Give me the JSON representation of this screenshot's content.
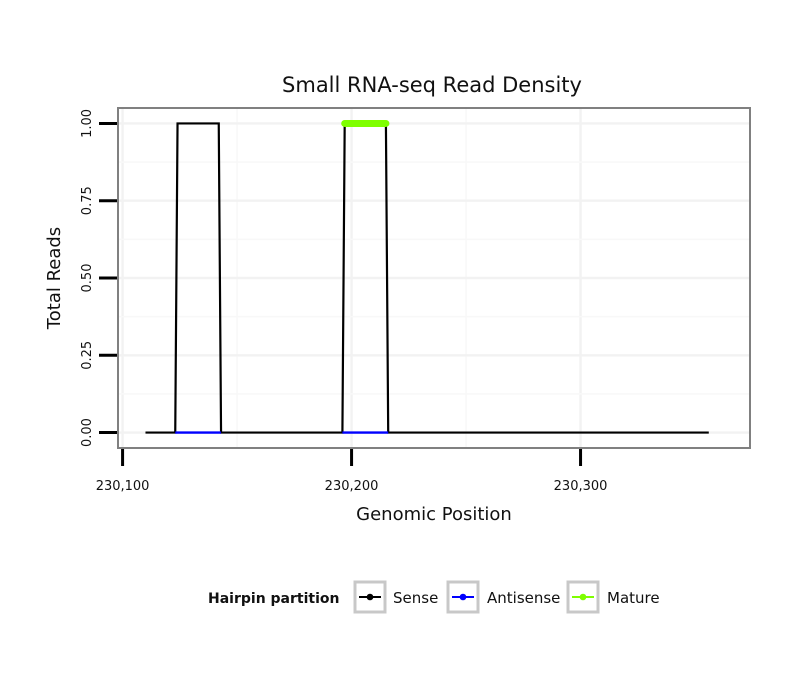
{
  "chart_data": {
    "type": "line",
    "title": "Small RNA-seq Read Density",
    "xlabel": "Genomic Position",
    "ylabel": "Total Reads",
    "xlim": [
      230098,
      230374
    ],
    "ylim": [
      -0.05,
      1.05
    ],
    "x_ticks": [
      230100,
      230200,
      230300
    ],
    "x_tick_labels": [
      "230,100",
      "230,200",
      "230,300"
    ],
    "y_ticks": [
      0,
      0.25,
      0.5,
      0.75,
      1
    ],
    "y_tick_labels": [
      "0.00",
      "0.25",
      "0.50",
      "0.75",
      "1.00"
    ],
    "grid": true,
    "series": [
      {
        "name": "Sense",
        "color": "#000000",
        "x": [
          230110,
          230123,
          230124,
          230142,
          230143,
          230196,
          230197,
          230215,
          230216,
          230356
        ],
        "y": [
          0,
          0,
          1,
          1,
          0,
          0,
          1,
          1,
          0,
          0
        ]
      },
      {
        "name": "Antisense",
        "color": "#0000ff",
        "x": [
          230123,
          230143,
          230196,
          230216
        ],
        "y": [
          0,
          0,
          0,
          0
        ],
        "segments": [
          [
            0,
            1
          ],
          [
            2,
            3
          ]
        ]
      },
      {
        "name": "Mature",
        "color": "#7fff00",
        "x": [
          230197,
          230215
        ],
        "y": [
          1,
          1
        ]
      }
    ],
    "legend": {
      "title": "Hairpin partition",
      "placement": "bottom",
      "items": [
        {
          "label": "Sense",
          "color": "#000000"
        },
        {
          "label": "Antisense",
          "color": "#0000ff"
        },
        {
          "label": "Mature",
          "color": "#7fff00"
        }
      ]
    }
  }
}
